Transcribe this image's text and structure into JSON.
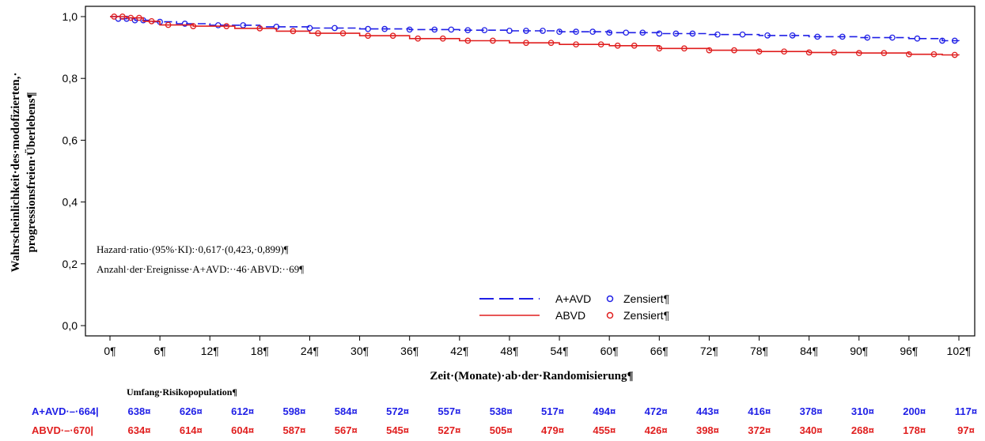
{
  "chart_data": {
    "type": "line",
    "ylabel_lines": [
      "Wahrscheinlichkeit·des·modofizierten,·",
      "progressionsfreien·Überlebens¶"
    ],
    "xlabel": "Zeit·(Monate)·ab·der·Randomisierung¶",
    "xlim": [
      0,
      102
    ],
    "ylim": [
      0,
      1
    ],
    "x_ticks": [
      0,
      6,
      12,
      18,
      24,
      30,
      36,
      42,
      48,
      54,
      60,
      66,
      72,
      78,
      84,
      90,
      96,
      102
    ],
    "x_tick_labels": [
      "0¶",
      "6¶",
      "12¶",
      "18¶",
      "24¶",
      "30¶",
      "36¶",
      "42¶",
      "48¶",
      "54¶",
      "60¶",
      "66¶",
      "72¶",
      "78¶",
      "84¶",
      "90¶",
      "96¶",
      "102¶"
    ],
    "y_ticks": [
      0,
      0.2,
      0.4,
      0.6,
      0.8,
      1.0
    ],
    "y_tick_labels": [
      "0,0",
      "0,2",
      "0,4",
      "0,6",
      "0,8",
      "1,0"
    ],
    "annotations": [
      "Hazard·ratio·(95%·KI):·0,617·(0,423,·0,899)¶",
      "Anzahl·der·Ereignisse·A+AVD:··46·ABVD:··69¶"
    ],
    "legend": {
      "position": "bottom-center",
      "entries": [
        {
          "series": "A+AVD",
          "censored_label": "Zensiert¶"
        },
        {
          "series": "ABVD",
          "censored_label": "Zensiert¶"
        }
      ]
    },
    "series": [
      {
        "name": "A+AVD",
        "color": "#1f1fe6",
        "style": "dashed",
        "x": [
          0,
          1,
          3,
          5,
          8,
          12,
          18,
          24,
          30,
          36,
          42,
          48,
          54,
          60,
          66,
          72,
          78,
          84,
          90,
          96,
          100,
          102
        ],
        "y": [
          1.0,
          0.993,
          0.988,
          0.983,
          0.977,
          0.972,
          0.967,
          0.963,
          0.96,
          0.958,
          0.956,
          0.954,
          0.951,
          0.948,
          0.945,
          0.942,
          0.939,
          0.935,
          0.932,
          0.929,
          0.922,
          0.921
        ],
        "censored_x": [
          1,
          2,
          3,
          4,
          6,
          9,
          13,
          16,
          20,
          24,
          27,
          31,
          33,
          36,
          39,
          41,
          43,
          45,
          48,
          50,
          52,
          54,
          56,
          58,
          60,
          62,
          64,
          66,
          68,
          70,
          73,
          76,
          79,
          82,
          85,
          88,
          91,
          94,
          97,
          100,
          101.5
        ]
      },
      {
        "name": "ABVD",
        "color": "#e01e1e",
        "style": "solid",
        "x": [
          0,
          2,
          4,
          6,
          10,
          15,
          20,
          24,
          30,
          36,
          42,
          48,
          54,
          60,
          66,
          72,
          78,
          84,
          90,
          96,
          100,
          102
        ],
        "y": [
          1.0,
          0.996,
          0.985,
          0.973,
          0.969,
          0.962,
          0.953,
          0.946,
          0.938,
          0.929,
          0.922,
          0.915,
          0.91,
          0.906,
          0.897,
          0.891,
          0.887,
          0.884,
          0.882,
          0.878,
          0.876,
          0.875
        ],
        "censored_x": [
          0.5,
          1.5,
          2.5,
          3.5,
          5,
          7,
          10,
          14,
          18,
          22,
          25,
          28,
          31,
          34,
          37,
          40,
          43,
          46,
          50,
          53,
          56,
          59,
          61,
          63,
          66,
          69,
          72,
          75,
          78,
          81,
          84,
          87,
          90,
          93,
          96,
          99,
          101.5
        ]
      }
    ]
  },
  "risk_table": {
    "title": "Umfang·Risikopopulation¶",
    "rows": [
      {
        "label": "A+AVD·–·664|",
        "color": "#1f1fe6",
        "values": [
          "638¤",
          "626¤",
          "612¤",
          "598¤",
          "584¤",
          "572¤",
          "557¤",
          "538¤",
          "517¤",
          "494¤",
          "472¤",
          "443¤",
          "416¤",
          "378¤",
          "310¤",
          "200¤",
          "117¤"
        ]
      },
      {
        "label": "ABVD·–·670|",
        "color": "#e01e1e",
        "values": [
          "634¤",
          "614¤",
          "604¤",
          "587¤",
          "567¤",
          "545¤",
          "527¤",
          "505¤",
          "479¤",
          "455¤",
          "426¤",
          "398¤",
          "372¤",
          "340¤",
          "268¤",
          "178¤",
          "97¤"
        ]
      }
    ]
  }
}
